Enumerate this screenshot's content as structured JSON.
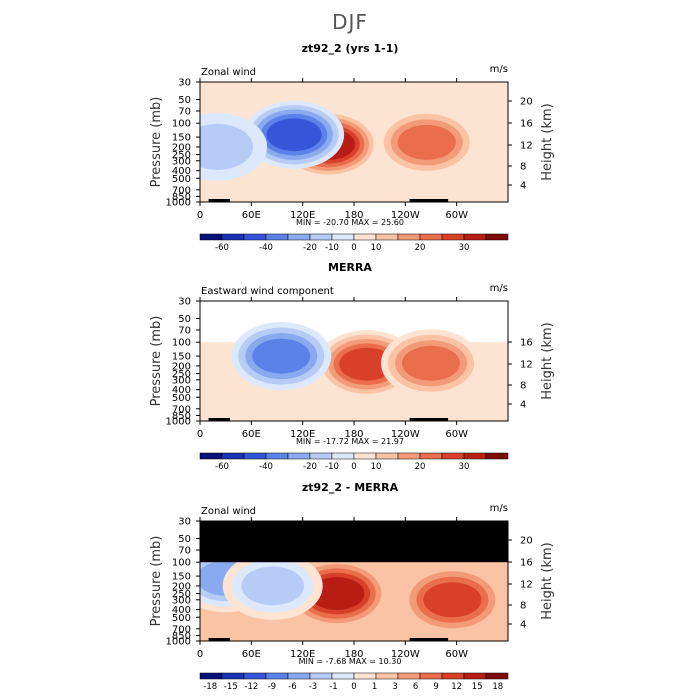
{
  "page": {
    "title": "DJF"
  },
  "palette": {
    "wind": [
      "#08107a",
      "#1832b8",
      "#3556d8",
      "#5b82e8",
      "#8aaaf0",
      "#b6ccf6",
      "#dce8fb",
      "#fde3d2",
      "#f9c3a4",
      "#f39b78",
      "#ea6d4c",
      "#d9402a",
      "#b81d13",
      "#7d0b06"
    ],
    "diff": [
      "#08107a",
      "#1832b8",
      "#3556d8",
      "#5b82e8",
      "#8aaaf0",
      "#b6ccf6",
      "#dce8fb",
      "#fde3d2",
      "#f9c3a4",
      "#f39b78",
      "#ea6d4c",
      "#d9402a",
      "#b81d13",
      "#7d0b06"
    ],
    "background": "#ffffff",
    "masked": "#000000"
  },
  "chart_data": [
    {
      "type": "heatmap",
      "title": "zt92_2 (yrs 1-1)",
      "left_label": "Zonal wind",
      "right_label": "m/s",
      "ylabel": "Pressure (mb)",
      "ylabel_right": "Height (km)",
      "pressure_ticks": [
        "30",
        "50",
        "70",
        "100",
        "150",
        "200",
        "250",
        "300",
        "400",
        "500",
        "700",
        "850",
        "1000"
      ],
      "height_ticks": [
        "20",
        "16",
        "12",
        "8",
        "4"
      ],
      "x_ticks": [
        "0",
        "60E",
        "120E",
        "180",
        "120W",
        "60W"
      ],
      "stats": "MIN = -20.70   MAX =  25.60",
      "colorbar_labels": [
        "-60",
        "-40",
        "-20",
        "-10",
        "0",
        "10",
        "20",
        "30"
      ],
      "palette": "wind",
      "features": [
        {
          "lon": 150,
          "p": 185,
          "value": 25.6
        },
        {
          "lon": 265,
          "p": 175,
          "value": 18
        },
        {
          "lon": 110,
          "p": 140,
          "value": -20.7
        },
        {
          "lon": 20,
          "p": 200,
          "value": -5
        }
      ]
    },
    {
      "type": "heatmap",
      "title": "MERRA",
      "left_label": "Eastward wind component",
      "right_label": "m/s",
      "ylabel": "Pressure (mb)",
      "ylabel_right": "Height (km)",
      "pressure_ticks": [
        "30",
        "50",
        "70",
        "100",
        "150",
        "200",
        "250",
        "300",
        "400",
        "500",
        "700",
        "850",
        "1000"
      ],
      "height_ticks": [
        "16",
        "12",
        "8",
        "4"
      ],
      "x_ticks": [
        "0",
        "60E",
        "120E",
        "180",
        "120W",
        "60W"
      ],
      "stats": "MIN = -17.72   MAX =  21.97",
      "colorbar_labels": [
        "-60",
        "-40",
        "-20",
        "-10",
        "0",
        "10",
        "20",
        "30"
      ],
      "palette": "wind",
      "features": [
        {
          "lon": 195,
          "p": 190,
          "value": 21.97
        },
        {
          "lon": 270,
          "p": 185,
          "value": 16
        },
        {
          "lon": 95,
          "p": 150,
          "value": -17.72
        }
      ]
    },
    {
      "type": "heatmap",
      "title": "zt92_2 - MERRA",
      "left_label": "Zonal wind",
      "right_label": "m/s",
      "ylabel": "Pressure (mb)",
      "ylabel_right": "Height (km)",
      "pressure_ticks": [
        "30",
        "50",
        "70",
        "100",
        "150",
        "200",
        "250",
        "300",
        "400",
        "500",
        "700",
        "850",
        "1000"
      ],
      "height_ticks": [
        "20",
        "16",
        "12",
        "8",
        "4"
      ],
      "x_ticks": [
        "0",
        "60E",
        "120E",
        "180",
        "120W",
        "60W"
      ],
      "stats": "MIN =  -7.68   MAX =  10.30",
      "colorbar_labels": [
        "-18",
        "-15",
        "-12",
        "-9",
        "-6",
        "-3",
        "-1",
        "0",
        "1",
        "3",
        "6",
        "9",
        "12",
        "15",
        "18"
      ],
      "palette": "diff",
      "masked_above_mb": 100,
      "features": [
        {
          "lon": 160,
          "p": 250,
          "value": 10.3
        },
        {
          "lon": 295,
          "p": 300,
          "value": 8
        },
        {
          "lon": 30,
          "p": 160,
          "value": -7.68
        },
        {
          "lon": 85,
          "p": 200,
          "value": -5
        }
      ]
    }
  ]
}
